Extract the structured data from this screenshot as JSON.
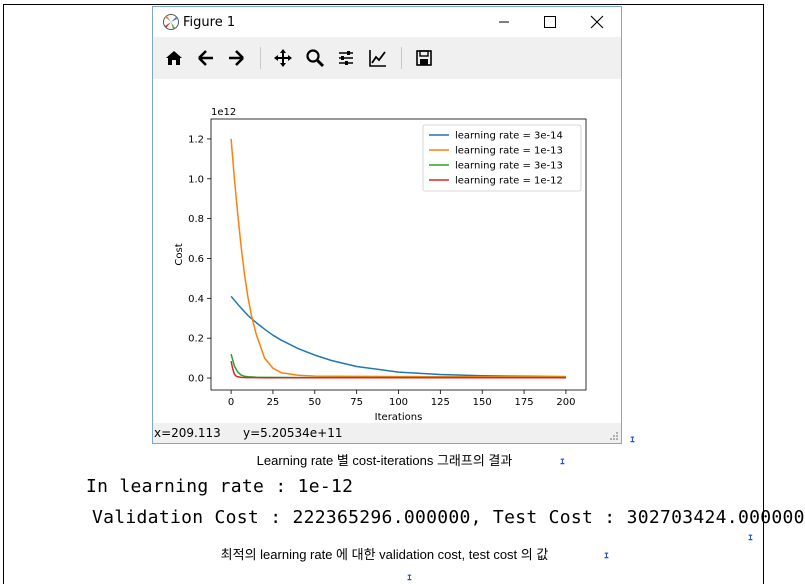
{
  "window": {
    "title": "Figure 1",
    "status_x": "x=209.113",
    "status_y": "y=5.20534e+11"
  },
  "toolbar": {
    "buttons": [
      "home-icon",
      "back-icon",
      "forward-icon",
      "pan-icon",
      "zoom-icon",
      "configure-subplots-icon",
      "edit-axis-icon",
      "save-icon"
    ]
  },
  "chart_data": {
    "type": "line",
    "xlabel": "Iterations",
    "ylabel": "Cost",
    "offset_label": "1e12",
    "xlim": [
      -12,
      212
    ],
    "ylim": [
      -0.06,
      1.3
    ],
    "xticks": [
      0,
      25,
      50,
      75,
      100,
      125,
      150,
      175,
      200
    ],
    "yticks": [
      0.0,
      0.2,
      0.4,
      0.6,
      0.8,
      1.0,
      1.2
    ],
    "legend_position": "top-right",
    "series": [
      {
        "name": "learning rate = 3e-14",
        "color": "#1f77b4",
        "x": [
          0,
          5,
          10,
          15,
          20,
          25,
          30,
          40,
          50,
          60,
          75,
          100,
          125,
          150,
          175,
          200
        ],
        "y": [
          0.41,
          0.36,
          0.315,
          0.278,
          0.245,
          0.215,
          0.19,
          0.148,
          0.115,
          0.088,
          0.058,
          0.03,
          0.018,
          0.012,
          0.009,
          0.007
        ]
      },
      {
        "name": "learning rate = 1e-13",
        "color": "#ff7f0e",
        "x": [
          0,
          2,
          4,
          6,
          8,
          10,
          12,
          15,
          20,
          25,
          30,
          40,
          50,
          75,
          100,
          150,
          200
        ],
        "y": [
          1.2,
          1.0,
          0.82,
          0.66,
          0.52,
          0.41,
          0.32,
          0.22,
          0.1,
          0.05,
          0.027,
          0.014,
          0.01,
          0.008,
          0.007,
          0.006,
          0.006
        ]
      },
      {
        "name": "learning rate = 3e-13",
        "color": "#2ca02c",
        "x": [
          0,
          2,
          4,
          6,
          8,
          10,
          15,
          20,
          50,
          100,
          150,
          200
        ],
        "y": [
          0.12,
          0.06,
          0.03,
          0.015,
          0.009,
          0.006,
          0.004,
          0.003,
          0.002,
          0.002,
          0.002,
          0.002
        ]
      },
      {
        "name": "learning rate = 1e-12",
        "color": "#d62728",
        "x": [
          0,
          1,
          2,
          3,
          4,
          6,
          10,
          20,
          50,
          100,
          150,
          200
        ],
        "y": [
          0.085,
          0.045,
          0.02,
          0.01,
          0.006,
          0.003,
          0.002,
          0.001,
          0.001,
          0.001,
          0.001,
          0.001
        ]
      }
    ]
  },
  "captions": {
    "figure_caption": "Learning rate 별  cost-iterations  그래프의  결과",
    "result_line1": "In learning rate : 1e-12",
    "result_line2": "Validation Cost : 222365296.000000, Test Cost : 302703424.000000",
    "bottom_caption": "최적의  learning rate 에  대한  validation cost, test cost 의  값"
  }
}
